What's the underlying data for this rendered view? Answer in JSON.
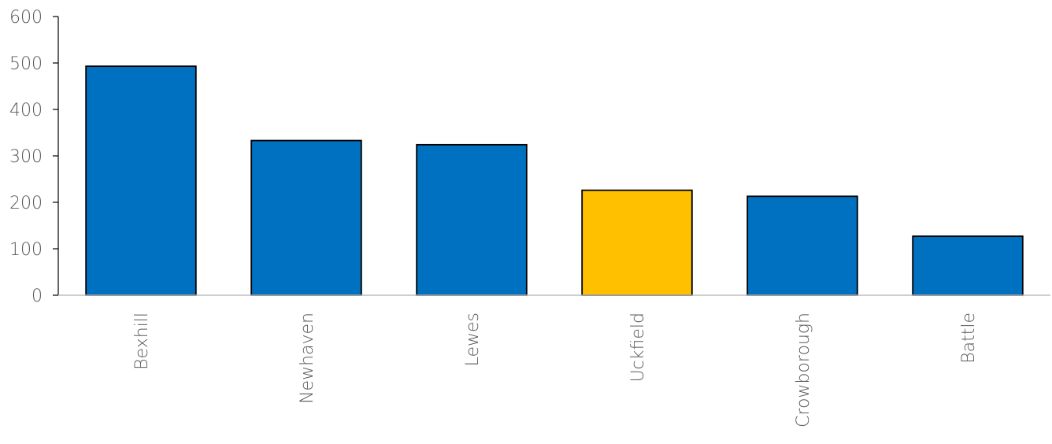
{
  "chart_data": {
    "type": "bar",
    "categories": [
      "Bexhill",
      "Newhaven",
      "Lewes",
      "Uckfield",
      "Crowborough",
      "Battle"
    ],
    "values": [
      493,
      333,
      324,
      226,
      213,
      127
    ],
    "title": "",
    "xlabel": "",
    "ylabel": "",
    "ylim": [
      0,
      600
    ],
    "yticks": [
      0,
      100,
      200,
      300,
      400,
      500,
      600
    ],
    "colors": [
      "#0070C0",
      "#0070C0",
      "#0070C0",
      "#FFC000",
      "#0070C0",
      "#0070C0"
    ],
    "bar_outline": "#000000",
    "grid": false,
    "legend": "none",
    "x_tick_rotation": "vertical"
  }
}
